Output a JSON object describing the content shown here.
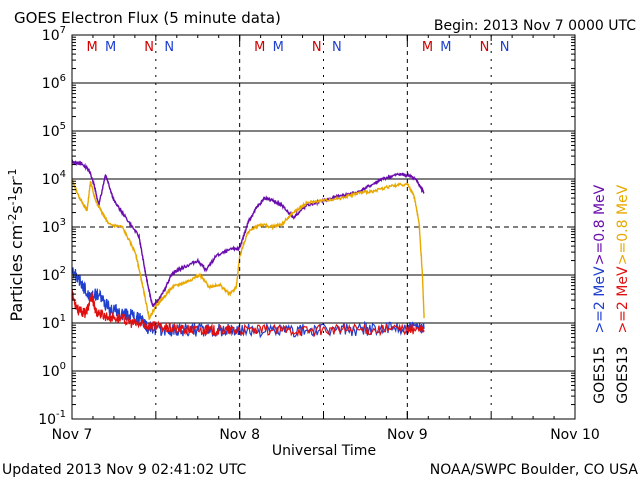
{
  "chart_data": {
    "type": "line",
    "title": "GOES Electron Flux (5 minute data)",
    "begin_label": "Begin: 2013 Nov 7 0000 UTC",
    "xlabel": "Universal Time",
    "ylabel_base": "Particles cm",
    "ylabel_exp1": "-2",
    "ylabel_mid1": "s",
    "ylabel_exp2": "-1",
    "ylabel_mid2": "sr",
    "ylabel_exp3": "-1",
    "x_range_days": [
      0,
      3
    ],
    "y_log_range": [
      -1,
      7
    ],
    "x_ticks": [
      {
        "day": 0,
        "label": "Nov 7"
      },
      {
        "day": 1,
        "label": "Nov 8"
      },
      {
        "day": 2,
        "label": "Nov 9"
      },
      {
        "day": 3,
        "label": "Nov 10"
      }
    ],
    "y_ticks": [
      {
        "exp": 7,
        "base": "10",
        "sup": "7"
      },
      {
        "exp": 6,
        "base": "10",
        "sup": "6"
      },
      {
        "exp": 5,
        "base": "10",
        "sup": "5"
      },
      {
        "exp": 4,
        "base": "10",
        "sup": "4"
      },
      {
        "exp": 3,
        "base": "10",
        "sup": "3"
      },
      {
        "exp": 2,
        "base": "10",
        "sup": "2"
      },
      {
        "exp": 1,
        "base": "10",
        "sup": "1"
      },
      {
        "exp": 0,
        "base": "10",
        "sup": "0"
      },
      {
        "exp": -1,
        "base": "10",
        "sup": "-1"
      }
    ],
    "threshold_level_exp": 3,
    "noon_markers_days": [
      0.5,
      1.5,
      2.5
    ],
    "noon_marker_days": [
      1,
      2
    ],
    "mn_markers": [
      {
        "day": 0.12,
        "label": "M",
        "color": "#d00000"
      },
      {
        "day": 0.23,
        "label": "M",
        "color": "#1f3fcf"
      },
      {
        "day": 0.46,
        "label": "N",
        "color": "#d00000"
      },
      {
        "day": 0.58,
        "label": "N",
        "color": "#1f3fcf"
      },
      {
        "day": 1.12,
        "label": "M",
        "color": "#d00000"
      },
      {
        "day": 1.23,
        "label": "M",
        "color": "#1f3fcf"
      },
      {
        "day": 1.46,
        "label": "N",
        "color": "#d00000"
      },
      {
        "day": 1.58,
        "label": "N",
        "color": "#1f3fcf"
      },
      {
        "day": 2.12,
        "label": "M",
        "color": "#d00000"
      },
      {
        "day": 2.23,
        "label": "M",
        "color": "#1f3fcf"
      },
      {
        "day": 2.46,
        "label": "N",
        "color": "#d00000"
      },
      {
        "day": 2.58,
        "label": "N",
        "color": "#1f3fcf"
      }
    ],
    "legend": [
      {
        "label": ">=0.8 MeV",
        "color": "#6a0dad",
        "satellite": "GOES15"
      },
      {
        "label": ">=0.8 MeV",
        "color": "#e8a800",
        "satellite": "GOES13"
      },
      {
        "label": ">=2 MeV",
        "color": "#1f3fcf",
        "satellite": "GOES15"
      },
      {
        "label": ">=2 MeV",
        "color": "#e01010",
        "satellite": "GOES13"
      }
    ],
    "legend_sat_15": "GOES15",
    "legend_sat_13": "GOES13",
    "series": [
      {
        "name": "GOES15 >=0.8 MeV",
        "color": "#6a0dad",
        "noise": 0.03,
        "x": [
          0.0,
          0.05,
          0.1,
          0.13,
          0.16,
          0.2,
          0.25,
          0.3,
          0.4,
          0.44,
          0.48,
          0.52,
          0.56,
          0.6,
          0.66,
          0.75,
          0.8,
          0.86,
          0.96,
          1.0,
          1.05,
          1.1,
          1.15,
          1.2,
          1.25,
          1.32,
          1.4,
          1.5,
          1.6,
          1.7,
          1.8,
          1.85,
          1.95,
          2.0,
          2.05,
          2.1
        ],
        "y": [
          4.35,
          4.33,
          4.2,
          3.9,
          3.45,
          4.1,
          3.55,
          3.3,
          2.8,
          2.0,
          1.35,
          1.5,
          1.75,
          2.05,
          2.15,
          2.3,
          2.1,
          2.4,
          2.55,
          2.55,
          3.1,
          3.4,
          3.6,
          3.55,
          3.45,
          3.2,
          3.45,
          3.55,
          3.65,
          3.72,
          3.9,
          4.0,
          4.1,
          4.08,
          4.0,
          3.7
        ]
      },
      {
        "name": "GOES13 >=0.8 MeV",
        "color": "#e8a800",
        "noise": 0.03,
        "x": [
          0.0,
          0.03,
          0.07,
          0.09,
          0.11,
          0.14,
          0.18,
          0.22,
          0.3,
          0.38,
          0.42,
          0.46,
          0.5,
          0.55,
          0.6,
          0.68,
          0.76,
          0.82,
          0.88,
          0.94,
          0.98,
          1.0,
          1.05,
          1.12,
          1.2,
          1.25,
          1.32,
          1.4,
          1.5,
          1.6,
          1.7,
          1.8,
          1.9,
          2.0,
          2.04,
          2.07,
          2.09,
          2.1
        ],
        "y": [
          4.0,
          3.7,
          3.45,
          3.35,
          3.95,
          3.55,
          3.3,
          3.05,
          3.0,
          2.45,
          1.8,
          1.1,
          1.35,
          1.55,
          1.75,
          1.85,
          2.0,
          1.75,
          1.8,
          1.6,
          1.75,
          2.4,
          2.9,
          3.05,
          3.0,
          3.05,
          3.3,
          3.5,
          3.55,
          3.6,
          3.7,
          3.75,
          3.85,
          3.9,
          3.65,
          3.1,
          2.0,
          1.1
        ]
      },
      {
        "name": "GOES15 >=2 MeV",
        "color": "#1f3fcf",
        "noise": 0.14,
        "x": [
          0.0,
          0.05,
          0.1,
          0.16,
          0.22,
          0.3,
          0.36,
          0.42,
          0.45,
          0.5,
          0.6,
          0.7,
          0.8,
          0.9,
          1.0,
          1.2,
          1.4,
          1.6,
          1.8,
          2.0,
          2.1
        ],
        "y": [
          2.1,
          1.85,
          1.55,
          1.6,
          1.3,
          1.2,
          1.15,
          1.05,
          0.9,
          0.88,
          0.85,
          0.85,
          0.85,
          0.85,
          0.85,
          0.85,
          0.85,
          0.86,
          0.88,
          0.9,
          0.88
        ]
      },
      {
        "name": "GOES13 >=2 MeV",
        "color": "#e01010",
        "noise": 0.11,
        "x": [
          0.0,
          0.04,
          0.08,
          0.12,
          0.14,
          0.2,
          0.28,
          0.36,
          0.44,
          0.5,
          0.6,
          0.7,
          0.8,
          0.9,
          1.0,
          1.2,
          1.4,
          1.6,
          1.8,
          2.0,
          2.1
        ],
        "y": [
          1.6,
          1.25,
          1.2,
          1.55,
          1.25,
          1.15,
          1.1,
          1.0,
          0.95,
          0.92,
          0.88,
          0.86,
          0.85,
          0.85,
          0.85,
          0.85,
          0.85,
          0.86,
          0.86,
          0.88,
          0.85
        ]
      }
    ]
  },
  "footer": {
    "updated": "Updated 2013 Nov  9 02:41:02 UTC",
    "source": "NOAA/SWPC Boulder, CO USA"
  }
}
